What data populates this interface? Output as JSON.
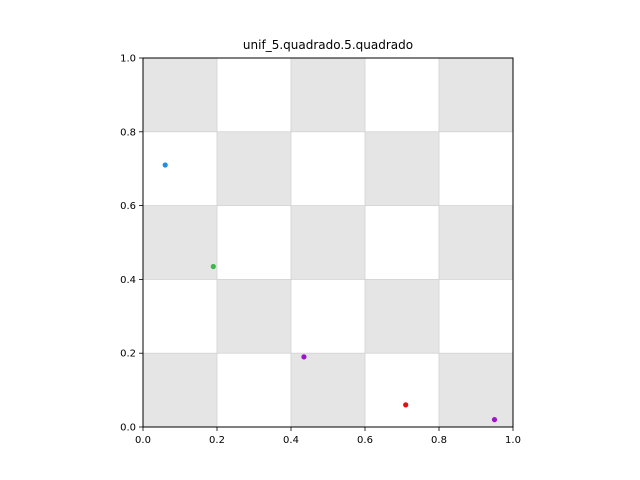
{
  "chart_data": {
    "type": "scatter",
    "title": "unif_5.quadrado.5.quadrado",
    "xlabel": "",
    "ylabel": "",
    "xlim": [
      0,
      1
    ],
    "ylim": [
      0,
      1
    ],
    "grid": false,
    "x_ticks": [
      "0.0",
      "0.2",
      "0.4",
      "0.6",
      "0.8",
      "1.0"
    ],
    "y_ticks": [
      "0.0",
      "0.2",
      "0.4",
      "0.6",
      "0.8",
      "1.0"
    ],
    "background_pattern": {
      "kind": "checkerboard",
      "divisions": 5,
      "shaded_color": "#e5e5e5",
      "edge_color": "#d2d2d2",
      "shaded_cells": [
        [
          0,
          0
        ],
        [
          2,
          0
        ],
        [
          4,
          0
        ],
        [
          1,
          1
        ],
        [
          3,
          1
        ],
        [
          0,
          2
        ],
        [
          2,
          2
        ],
        [
          4,
          2
        ],
        [
          1,
          3
        ],
        [
          3,
          3
        ],
        [
          0,
          4
        ],
        [
          2,
          4
        ],
        [
          4,
          4
        ]
      ]
    },
    "points": [
      {
        "x": 0.06,
        "y": 0.71,
        "color": "#1f8fe0"
      },
      {
        "x": 0.19,
        "y": 0.435,
        "color": "#3cb84a"
      },
      {
        "x": 0.435,
        "y": 0.19,
        "color": "#9a18c8"
      },
      {
        "x": 0.71,
        "y": 0.06,
        "color": "#e01010"
      },
      {
        "x": 0.95,
        "y": 0.02,
        "color": "#9a18c8"
      }
    ]
  }
}
